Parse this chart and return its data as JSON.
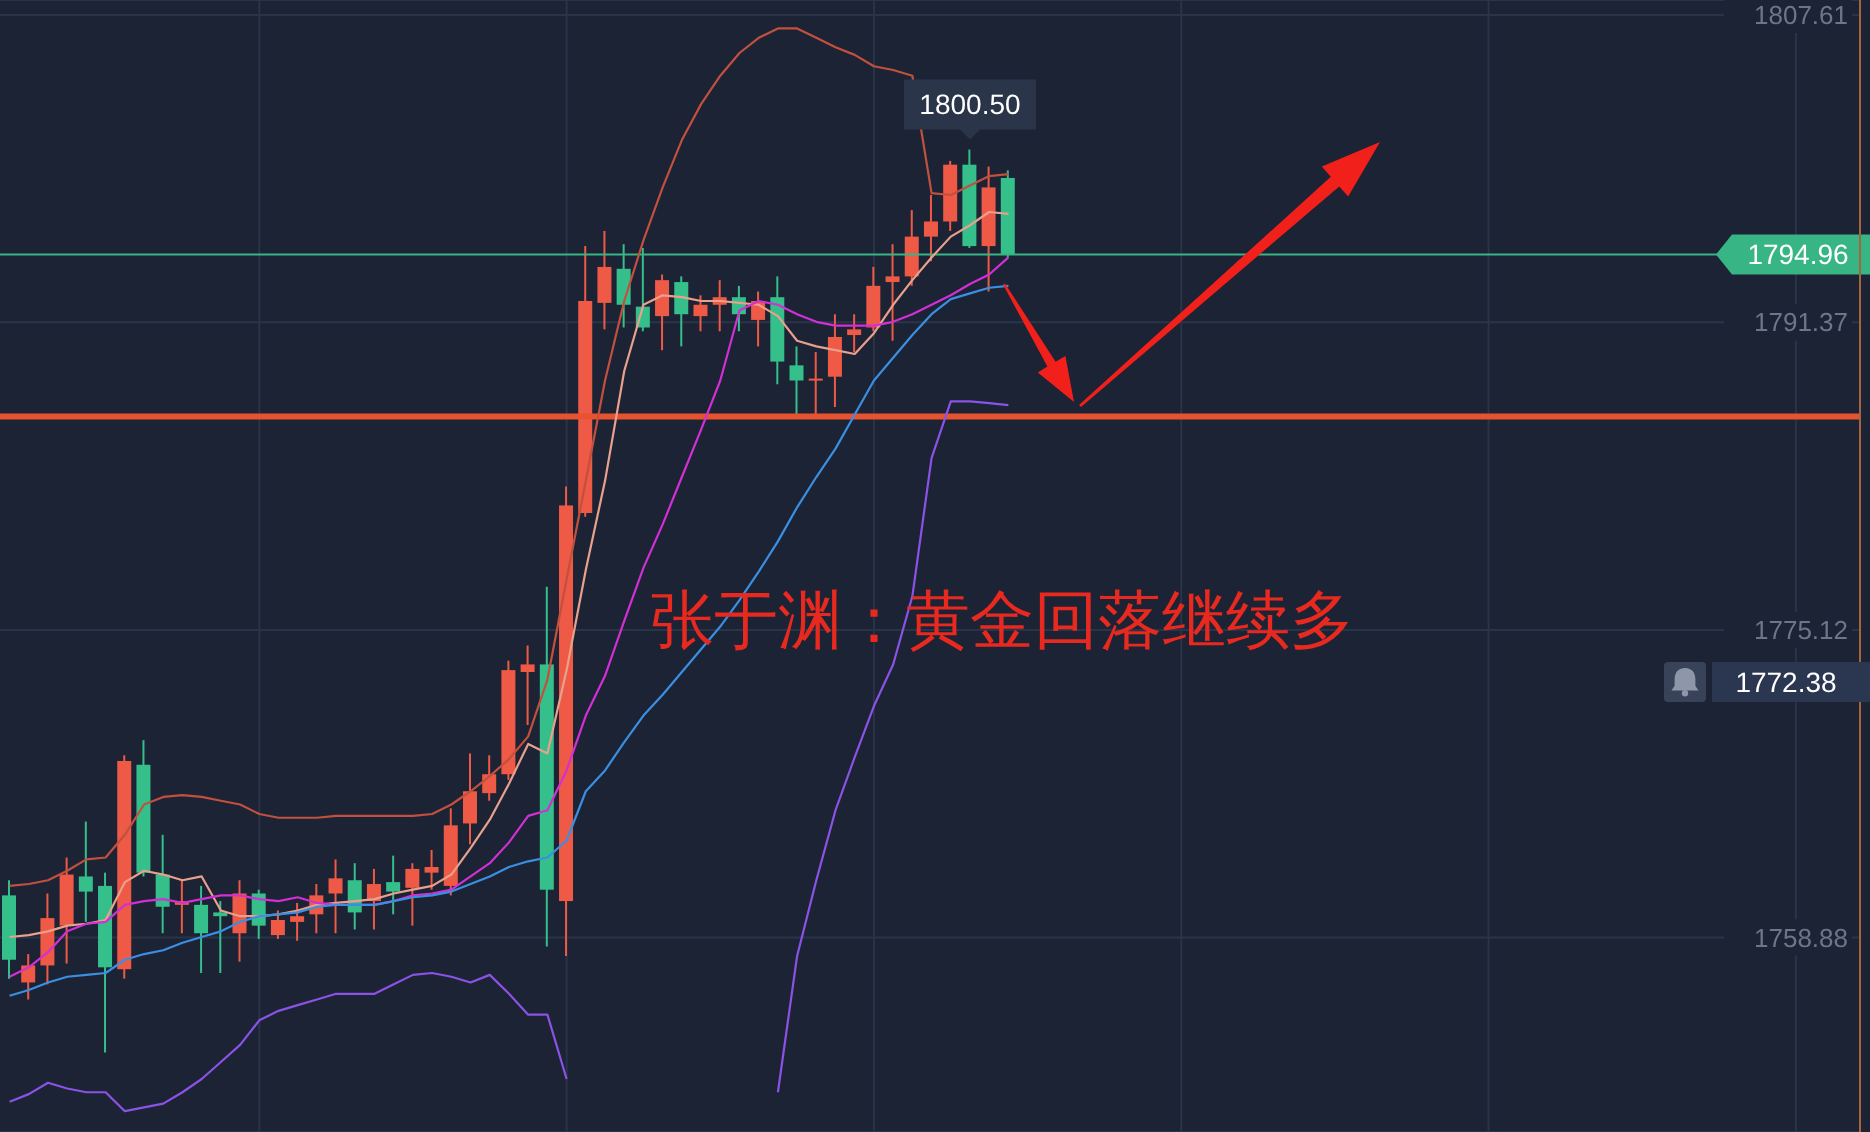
{
  "chart_data": {
    "type": "candlestick",
    "title": "张于渊：黄金回落继续多",
    "categories": [
      null,
      null,
      null,
      null,
      null,
      null,
      null,
      null,
      null,
      null,
      null,
      null,
      null,
      null,
      null,
      null,
      null,
      null,
      null,
      null,
      null,
      null,
      null,
      null,
      null,
      null,
      null,
      null,
      null,
      null,
      null,
      null,
      null,
      null,
      null,
      null,
      null,
      null,
      null,
      null,
      null,
      null,
      null,
      null,
      null,
      null,
      null,
      null,
      null,
      null,
      null,
      null,
      null
    ],
    "ohlc": [
      [
        1761.1,
        1761.9,
        1756.7,
        1757.7
      ],
      [
        1756.5,
        1758.0,
        1755.6,
        1757.4
      ],
      [
        1757.4,
        1761.2,
        1756.4,
        1759.9
      ],
      [
        1759.5,
        1763.1,
        1757.5,
        1762.2
      ],
      [
        1762.1,
        1765.0,
        1759.7,
        1761.3
      ],
      [
        1761.6,
        1762.3,
        1752.8,
        1757.3
      ],
      [
        1757.2,
        1768.5,
        1756.7,
        1768.2
      ],
      [
        1768.0,
        1769.3,
        1762.1,
        1762.3
      ],
      [
        1762.2,
        1764.3,
        1759.1,
        1760.5
      ],
      [
        1760.6,
        1761.9,
        1759.1,
        1760.8
      ],
      [
        1760.6,
        1761.6,
        1757.0,
        1759.1
      ],
      [
        1760.2,
        1760.8,
        1757.0,
        1760.0
      ],
      [
        1759.1,
        1761.9,
        1757.6,
        1761.2
      ],
      [
        1761.2,
        1761.4,
        1758.8,
        1759.5
      ],
      [
        1759.0,
        1760.3,
        1758.8,
        1759.8
      ],
      [
        1759.7,
        1760.7,
        1758.7,
        1760.0
      ],
      [
        1760.1,
        1761.7,
        1759.1,
        1761.1
      ],
      [
        1761.2,
        1763.0,
        1759.1,
        1762.0
      ],
      [
        1761.9,
        1762.8,
        1759.3,
        1760.2
      ],
      [
        1760.8,
        1762.5,
        1759.3,
        1761.7
      ],
      [
        1761.8,
        1763.2,
        1760.1,
        1761.3
      ],
      [
        1761.5,
        1762.8,
        1759.5,
        1762.5
      ],
      [
        1762.3,
        1763.5,
        1761.4,
        1762.6
      ],
      [
        1761.6,
        1765.7,
        1761.1,
        1764.8
      ],
      [
        1764.9,
        1768.6,
        1763.8,
        1766.6
      ],
      [
        1766.5,
        1768.5,
        1766.1,
        1767.5
      ],
      [
        1767.5,
        1773.5,
        1767.2,
        1773.0
      ],
      [
        1772.9,
        1774.3,
        1770.1,
        1773.3
      ],
      [
        1773.3,
        1777.4,
        1758.4,
        1761.4
      ],
      [
        1760.8,
        1782.7,
        1757.9,
        1781.7
      ],
      [
        1781.3,
        1795.4,
        1781.1,
        1792.5
      ],
      [
        1792.4,
        1796.2,
        1791.0,
        1794.3
      ],
      [
        1794.2,
        1795.5,
        1791.1,
        1792.3
      ],
      [
        1792.2,
        1795.3,
        1790.9,
        1791.1
      ],
      [
        1791.7,
        1793.9,
        1789.9,
        1793.6
      ],
      [
        1793.5,
        1793.8,
        1790.1,
        1791.8
      ],
      [
        1791.7,
        1792.8,
        1790.9,
        1792.3
      ],
      [
        1792.3,
        1793.6,
        1790.9,
        1792.7
      ],
      [
        1792.7,
        1793.3,
        1790.9,
        1791.8
      ],
      [
        1791.5,
        1793.0,
        1790.1,
        1792.5
      ],
      [
        1792.7,
        1793.8,
        1788.1,
        1789.3
      ],
      [
        1789.1,
        1790.1,
        1786.3,
        1788.3
      ],
      [
        1788.3,
        1789.8,
        1786.5,
        1788.4
      ],
      [
        1788.5,
        1791.8,
        1786.9,
        1790.6
      ],
      [
        1790.7,
        1791.8,
        1789.8,
        1791.0
      ],
      [
        1791.1,
        1794.3,
        1790.9,
        1793.3
      ],
      [
        1793.5,
        1795.5,
        1790.4,
        1793.8
      ],
      [
        1793.8,
        1797.3,
        1793.3,
        1795.9
      ],
      [
        1795.9,
        1798.1,
        1794.6,
        1796.7
      ],
      [
        1796.7,
        1799.9,
        1796.2,
        1799.7
      ],
      [
        1799.7,
        1800.5,
        1795.3,
        1795.4
      ],
      [
        1795.4,
        1799.6,
        1793.0,
        1798.5
      ],
      [
        1799.0,
        1799.4,
        1794.8,
        1794.96
      ]
    ],
    "colors": [
      "#35bf8b",
      "#ee5a45",
      "#ee5a45",
      "#ee5a45",
      "#35bf8b",
      "#35bf8b",
      "#ee5a45",
      "#35bf8b",
      "#35bf8b",
      "#ee5a45",
      "#35bf8b",
      "#35bf8b",
      "#ee5a45",
      "#35bf8b",
      "#ee5a45",
      "#ee5a45",
      "#ee5a45",
      "#ee5a45",
      "#35bf8b",
      "#ee5a45",
      "#35bf8b",
      "#ee5a45",
      "#ee5a45",
      "#ee5a45",
      "#ee5a45",
      "#ee5a45",
      "#ee5a45",
      "#ee5a45",
      "#35bf8b",
      "#ee5a45",
      "#ee5a45",
      "#ee5a45",
      "#35bf8b",
      "#35bf8b",
      "#ee5a45",
      "#35bf8b",
      "#ee5a45",
      "#ee5a45",
      "#35bf8b",
      "#ee5a45",
      "#35bf8b",
      "#35bf8b",
      "#ee5a45",
      "#ee5a45",
      "#ee5a45",
      "#ee5a45",
      "#ee5a45",
      "#ee5a45",
      "#ee5a45",
      "#ee5a45",
      "#35bf8b",
      "#ee5a45",
      "#35bf8b"
    ],
    "series": [
      {
        "type": "line",
        "color": "#c2503f",
        "values": [
          1761.6,
          1761.7,
          1761.9,
          1762.4,
          1763.0,
          1763.1,
          1764.3,
          1765.9,
          1766.3,
          1766.4,
          1766.3,
          1766.1,
          1765.9,
          1765.4,
          1765.2,
          1765.2,
          1765.2,
          1765.3,
          1765.3,
          1765.3,
          1765.3,
          1765.3,
          1765.4,
          1765.9,
          1766.6,
          1767.4,
          1768.3,
          1769.5,
          1772.5,
          1777.8,
          1783.0,
          1788.3,
          1792.5,
          1795.7,
          1798.5,
          1801.0,
          1802.9,
          1804.4,
          1805.6,
          1806.4,
          1806.9,
          1806.9,
          1806.4,
          1805.9,
          1805.5,
          1804.9,
          1804.7,
          1804.4,
          1798.2,
          1798.1,
          1798.6,
          1799.1,
          1799.2
        ]
      },
      {
        "type": "line",
        "color": "#e9a08c",
        "values": [
          1758.9,
          1759.0,
          1759.2,
          1759.5,
          1759.6,
          1759.8,
          1761.8,
          1762.4,
          1762.2,
          1761.9,
          1762.1,
          1760.3,
          1760.0,
          1760.0,
          1760.1,
          1760.3,
          1760.6,
          1760.7,
          1760.8,
          1760.9,
          1761.2,
          1761.4,
          1761.6,
          1762.2,
          1763.6,
          1765.1,
          1767.0,
          1769.1,
          1768.6,
          1773.0,
          1778.3,
          1783.0,
          1788.8,
          1792.3,
          1792.8,
          1792.7,
          1792.5,
          1792.5,
          1792.4,
          1792.3,
          1791.7,
          1790.4,
          1790.1,
          1789.9,
          1789.7,
          1790.8,
          1792.3,
          1793.6,
          1794.8,
          1795.9,
          1796.5,
          1797.2,
          1797.1
        ]
      },
      {
        "type": "line",
        "color": "#d22fd4",
        "values": [
          1756.8,
          1757.3,
          1758.1,
          1759.2,
          1759.6,
          1759.7,
          1760.6,
          1760.8,
          1760.9,
          1760.7,
          1760.9,
          1761.1,
          1761.1,
          1760.9,
          1760.8,
          1761.0,
          1760.7,
          1760.6,
          1760.6,
          1760.6,
          1760.8,
          1761.1,
          1761.2,
          1761.4,
          1762.1,
          1762.8,
          1763.9,
          1765.3,
          1765.6,
          1767.7,
          1770.6,
          1772.7,
          1775.6,
          1778.4,
          1780.7,
          1783.2,
          1785.7,
          1788.3,
          1792.0,
          1792.5,
          1792.3,
          1791.8,
          1791.4,
          1791.2,
          1791.2,
          1791.2,
          1791.4,
          1791.8,
          1792.3,
          1792.8,
          1793.4,
          1793.9,
          1794.8
        ]
      },
      {
        "type": "line",
        "color": "#3b8fe3",
        "values": [
          1755.8,
          1756.1,
          1756.5,
          1756.8,
          1756.9,
          1757.0,
          1757.7,
          1758.0,
          1758.2,
          1758.6,
          1758.9,
          1759.2,
          1759.7,
          1760.0,
          1760.1,
          1760.2,
          1760.5,
          1760.6,
          1760.6,
          1760.6,
          1760.8,
          1761.0,
          1761.1,
          1761.3,
          1761.7,
          1762.1,
          1762.6,
          1762.9,
          1763.1,
          1764.0,
          1766.6,
          1767.7,
          1769.2,
          1770.6,
          1771.7,
          1772.9,
          1774.1,
          1775.3,
          1776.7,
          1778.2,
          1779.8,
          1781.6,
          1783.2,
          1784.7,
          1786.5,
          1788.3,
          1789.5,
          1790.7,
          1791.8,
          1792.6,
          1792.9,
          1793.2,
          1793.3
        ]
      },
      {
        "type": "line",
        "color": "#8b52e6",
        "values": [
          1750.2,
          1750.6,
          1751.2,
          1750.9,
          1750.7,
          1750.7,
          1749.7,
          1749.9,
          1750.1,
          1750.7,
          1751.4,
          1752.3,
          1753.2,
          1754.5,
          1755.0,
          1755.3,
          1755.6,
          1755.9,
          1755.9,
          1755.9,
          1756.4,
          1756.9,
          1757.0,
          1756.8,
          1756.5,
          1756.9,
          1755.9,
          1754.8,
          1754.8,
          1751.4,
          null,
          null,
          null,
          null,
          null,
          null,
          null,
          null,
          null,
          null,
          1750.7,
          1757.9,
          1761.9,
          1765.6,
          1768.4,
          1771.1,
          1773.3,
          1776.9,
          1784.2,
          1787.2,
          1787.2,
          1787.1,
          1787.0
        ]
      }
    ],
    "ylim": [
      1748.6,
      1808.4
    ],
    "yticks": [
      1758.88,
      1775.12,
      1791.37,
      1807.61
    ],
    "grid": true,
    "tick_labels": "y",
    "ref_lines": [
      {
        "axis": "y",
        "value": 1794.96,
        "label": "1794.96",
        "color": "#37b585"
      },
      {
        "axis": "y",
        "value": 1786.4,
        "color": "#e8532f"
      }
    ],
    "annotations": [
      {
        "text": "1800.50",
        "y": 1800.5
      },
      "1772.38"
    ]
  }
}
